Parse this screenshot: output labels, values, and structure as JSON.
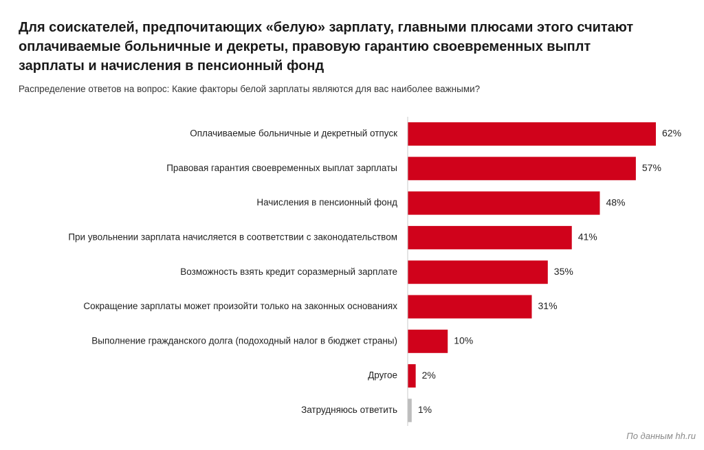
{
  "title": "Для соискателей, предпочитающих «белую» зарплату, главными плюсами этого считают оплачиваемые больничные и декреты, правовую гарантию своевременных выплт зарплаты и начисления в пенсионный фонд",
  "subtitle": "Распределение ответов на вопрос: Какие факторы белой зарплаты являются для вас наиболее важными?",
  "source": "По данным hh.ru",
  "colors": {
    "bar": "#d0021b",
    "bar_muted": "#bdbdbd",
    "axis": "#c8c8c8"
  },
  "chart_data": {
    "type": "bar",
    "orientation": "horizontal",
    "title": "Для соискателей, предпочитающих «белую» зарплату, главными плюсами этого считают оплачиваемые больничные и декреты, правовую гарантию своевременных выплт зарплаты и начисления в пенсионный фонд",
    "subtitle": "Распределение ответов на вопрос: Какие факторы белой зарплаты являются для вас наиболее важными?",
    "xlabel": "",
    "ylabel": "",
    "unit": "%",
    "xlim": [
      0,
      62
    ],
    "grid": false,
    "categories": [
      "Оплачиваемые больничные и декретный отпуск",
      "Правовая гарантия своевременных выплат зарплаты",
      "Начисления в пенсионный фонд",
      "При увольнении зарплата начисляется в соответствии с законодательством",
      "Возможность взять кредит соразмерный зарплате",
      "Сокращение зарплаты может произойти только на законных основаниях",
      "Выполнение гражданского долга (подоходный налог в бюджет страны)",
      "Другое",
      "Затрудняюсь ответить"
    ],
    "values": [
      62,
      57,
      48,
      41,
      35,
      31,
      10,
      2,
      1
    ],
    "value_labels": [
      "62%",
      "57%",
      "48%",
      "41%",
      "35%",
      "31%",
      "10%",
      "2%",
      "1%"
    ],
    "muted_categories": [
      "Затрудняюсь ответить"
    ]
  }
}
